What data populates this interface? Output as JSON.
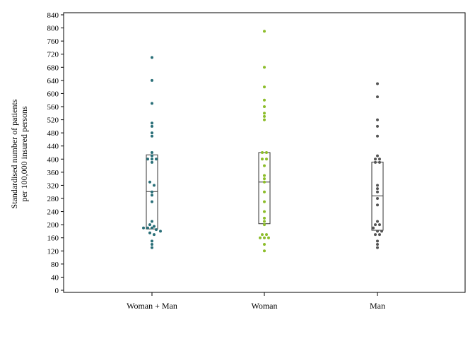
{
  "chart_data": {
    "type": "scatter",
    "subtype": "dot plot with box overlay",
    "title": "",
    "xlabel": "",
    "ylabel_lines": [
      "Standardised number of patients",
      "per 100,000 insured persons"
    ],
    "ylim": [
      0,
      840
    ],
    "yticks": [
      0,
      40,
      80,
      120,
      160,
      200,
      240,
      280,
      320,
      360,
      400,
      440,
      480,
      520,
      560,
      600,
      640,
      680,
      720,
      760,
      800,
      840
    ],
    "grid": false,
    "legend": "none",
    "categories": [
      "Woman + Man",
      "Woman",
      "Man"
    ],
    "series": [
      {
        "color": "#2a6f78",
        "box": {
          "q1": 187,
          "median": 301,
          "q3": 413
        },
        "values": [
          710,
          640,
          570,
          510,
          500,
          480,
          470,
          420,
          410,
          400,
          400,
          400,
          390,
          330,
          320,
          300,
          290,
          270,
          210,
          200,
          195,
          190,
          190,
          190,
          185,
          180,
          175,
          170,
          150,
          140,
          130
        ]
      },
      {
        "color": "#8cbd2a",
        "box": {
          "q1": 203,
          "median": 330,
          "q3": 420
        },
        "values": [
          790,
          680,
          620,
          580,
          560,
          540,
          530,
          520,
          420,
          420,
          400,
          400,
          380,
          350,
          340,
          330,
          300,
          270,
          240,
          220,
          210,
          200,
          170,
          170,
          160,
          160,
          160,
          140,
          120
        ]
      },
      {
        "color": "#555555",
        "box": {
          "q1": 183,
          "median": 288,
          "q3": 391
        },
        "values": [
          630,
          590,
          520,
          500,
          470,
          410,
          400,
          400,
          390,
          390,
          320,
          310,
          300,
          280,
          260,
          210,
          200,
          200,
          190,
          180,
          180,
          170,
          170,
          150,
          140,
          130
        ]
      }
    ]
  }
}
